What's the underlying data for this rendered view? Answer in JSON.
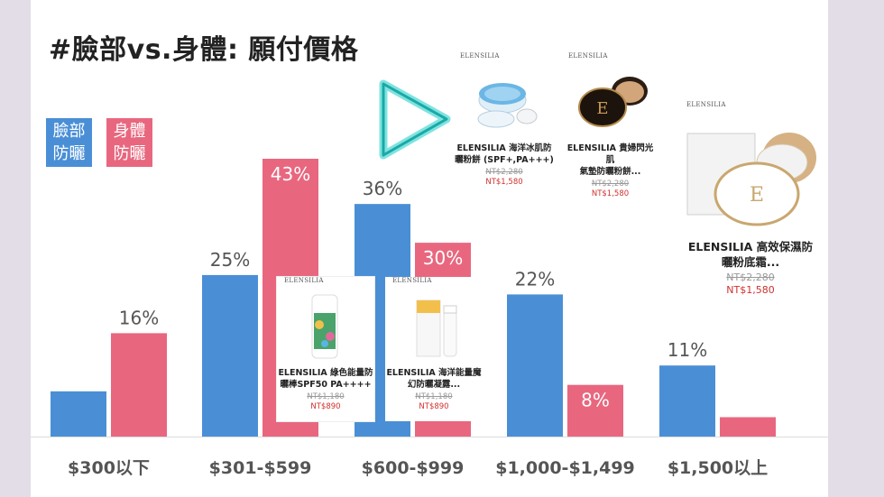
{
  "title": "#臉部vs.身體: 願付價格",
  "legend": {
    "face": {
      "line1": "臉部",
      "line2": "防曬",
      "color": "#4a8fd6"
    },
    "body": {
      "line1": "身體",
      "line2": "防曬",
      "color": "#e8677f"
    }
  },
  "chart_data": {
    "type": "bar",
    "title": "#臉部vs.身體: 願付價格",
    "categories": [
      "$300以下",
      "$301-$599",
      "$600-$999",
      "$1,000-$1,499",
      "$1,500以上"
    ],
    "series": [
      {
        "name": "臉部防曬",
        "color": "#4a8fd6",
        "values": [
          7,
          25,
          36,
          22,
          11
        ],
        "labels": [
          "",
          "25%",
          "36%",
          "22%",
          "11%"
        ]
      },
      {
        "name": "身體防曬",
        "color": "#e8677f",
        "values": [
          16,
          43,
          30,
          8,
          3
        ],
        "labels": [
          "16%",
          "43%",
          "30%",
          "8%",
          ""
        ]
      }
    ],
    "ylim": [
      0,
      45
    ],
    "grid": false,
    "legend_position": "top-left"
  },
  "products": [
    {
      "brand": "ELENSILIA",
      "name_line1": "ELENSILIA 海洋冰肌防",
      "name_line2": "曬粉餅 (SPF+,PA+++)",
      "old_price": "NT$2,280",
      "new_price": "NT$1,580"
    },
    {
      "brand": "ELENSILIA",
      "name_line1": "ELENSILIA 貴婦閃光肌",
      "name_line2": "氣墊防曬粉餅...",
      "old_price": "NT$2,280",
      "new_price": "NT$1,580"
    },
    {
      "brand": "ELENSILIA",
      "name_line1": "ELENSILIA 高效保濕防",
      "name_line2": "曬粉底霜...",
      "old_price": "NT$2,280",
      "new_price": "NT$1,580"
    },
    {
      "brand": "ELENSILIA",
      "name_line1": "ELENSILIA 綠色能量防",
      "name_line2": "曬棒SPF50 PA++++",
      "old_price": "NT$1,180",
      "new_price": "NT$890"
    },
    {
      "brand": "ELENSILIA",
      "name_line1": "ELENSILIA 海洋能量魔",
      "name_line2": "幻防曬凝露...",
      "old_price": "NT$1,180",
      "new_price": "NT$890"
    }
  ],
  "icons": {
    "play": "play-icon"
  }
}
